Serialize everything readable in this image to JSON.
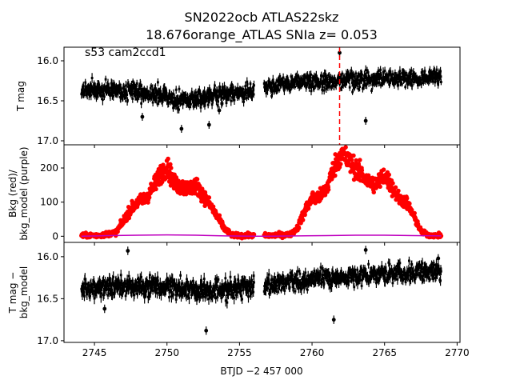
{
  "title_line1": "SN2022ocb  ATLAS22skz",
  "title_line2": "18.676orange_ATLAS SNIa z= 0.053",
  "sector_label": "s53 cam2ccd1",
  "xlabel": "BTJD −2 457 000",
  "colors": {
    "data": "#000000",
    "bkg": "#ff0000",
    "bkg_model": "#bf00bf",
    "marker": "#ff0000"
  },
  "chart_data": [
    {
      "type": "scatter",
      "name": "panel-tmag",
      "ylabel": "T mag",
      "ylim": [
        17.05,
        15.83
      ],
      "inverted_y": true,
      "yticks": [
        {
          "value": 16.0,
          "label": "16.0"
        },
        {
          "value": 16.5,
          "label": "16.5"
        },
        {
          "value": 17.0,
          "label": "17.0"
        }
      ],
      "xlim": [
        2742.9,
        2770.2
      ],
      "segments": [
        {
          "x": [
            2744.1,
            2756.0
          ],
          "center": [
            16.36,
            16.36,
            16.38,
            16.42,
            16.5,
            16.46,
            16.4,
            16.36
          ],
          "spread": 0.1
        },
        {
          "x": [
            2756.7,
            2768.9
          ],
          "center": [
            16.32,
            16.28,
            16.26,
            16.25,
            16.24,
            16.22,
            16.22,
            16.2
          ],
          "spread": 0.09
        }
      ],
      "outliers": [
        [
          2751.0,
          16.85
        ],
        [
          2752.9,
          16.8
        ],
        [
          2761.9,
          15.9
        ],
        [
          2763.7,
          16.75
        ],
        [
          2753.6,
          16.62
        ],
        [
          2748.3,
          16.7
        ]
      ],
      "vline": 2761.9
    },
    {
      "type": "line",
      "name": "panel-bkg",
      "ylabel": "Bkg (red)/\nbkg_model (purple)",
      "ylim": [
        -18,
        268
      ],
      "yticks": [
        {
          "value": 0,
          "label": "0"
        },
        {
          "value": 100,
          "label": "100"
        },
        {
          "value": 200,
          "label": "200"
        }
      ],
      "series": [
        {
          "name": "Bkg",
          "x": [
            2744.1,
            2745.5,
            2746.5,
            2747.0,
            2747.5,
            2748.0,
            2748.5,
            2749.0,
            2749.5,
            2750.0,
            2750.5,
            2751.0,
            2751.5,
            2752.0,
            2752.5,
            2753.0,
            2753.5,
            2754.0,
            2754.5,
            2755.0,
            2756.0
          ],
          "y": [
            2,
            3,
            12,
            45,
            80,
            100,
            110,
            140,
            180,
            205,
            155,
            145,
            140,
            150,
            120,
            90,
            55,
            20,
            3,
            2,
            2
          ]
        },
        {
          "name": "Bkg2",
          "x": [
            2756.7,
            2757.5,
            2758.5,
            2759.0,
            2759.5,
            2760.0,
            2760.5,
            2761.0,
            2761.5,
            2762.0,
            2762.5,
            2763.0,
            2763.5,
            2764.0,
            2764.5,
            2765.0,
            2765.5,
            2766.0,
            2766.5,
            2767.0,
            2767.5,
            2768.0,
            2768.9
          ],
          "y": [
            2,
            3,
            5,
            25,
            75,
            110,
            115,
            140,
            200,
            245,
            220,
            200,
            175,
            155,
            155,
            180,
            145,
            110,
            100,
            60,
            15,
            3,
            2
          ]
        },
        {
          "name": "bkg_model",
          "x": [
            2744.1,
            2746.0,
            2748.0,
            2750.0,
            2752.0,
            2754.0,
            2756.0,
            2757.0,
            2759.0,
            2761.0,
            2763.0,
            2765.0,
            2767.0,
            2768.9
          ],
          "y": [
            0,
            2,
            3,
            4,
            3,
            1,
            0,
            0,
            1,
            2,
            3,
            3,
            2,
            1
          ]
        }
      ]
    },
    {
      "type": "scatter",
      "name": "panel-residual",
      "ylabel": "T mag −\nbkg_model",
      "ylim": [
        17.02,
        15.83
      ],
      "inverted_y": true,
      "yticks": [
        {
          "value": 16.0,
          "label": "16.0"
        },
        {
          "value": 16.5,
          "label": "16.5"
        },
        {
          "value": 17.0,
          "label": "17.0"
        }
      ],
      "xlim": [
        2742.9,
        2770.2
      ],
      "xticks": [
        2745,
        2750,
        2755,
        2760,
        2765,
        2770
      ],
      "segments": [
        {
          "x": [
            2744.1,
            2756.0
          ],
          "center": [
            16.38,
            16.37,
            16.36,
            16.36,
            16.38,
            16.4,
            16.38,
            16.36
          ],
          "spread": 0.11
        },
        {
          "x": [
            2756.7,
            2768.9
          ],
          "center": [
            16.34,
            16.3,
            16.27,
            16.25,
            16.22,
            16.2,
            16.18,
            16.18
          ],
          "spread": 0.1
        }
      ],
      "outliers": [
        [
          2747.3,
          15.93
        ],
        [
          2752.7,
          16.88
        ],
        [
          2761.5,
          16.75
        ],
        [
          2763.7,
          15.92
        ],
        [
          2768.7,
          16.02
        ],
        [
          2745.7,
          16.62
        ]
      ]
    }
  ]
}
